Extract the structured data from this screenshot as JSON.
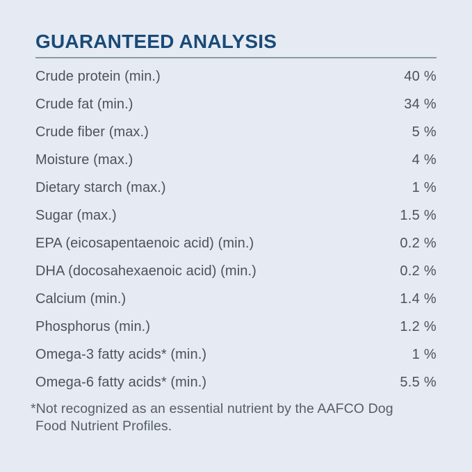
{
  "colors": {
    "background": "#e6ebf3",
    "title": "#1a4a77",
    "underline": "#8c99a6",
    "row_text": "#4c5258",
    "footnote_text": "#565d64"
  },
  "analysis": {
    "title": "GUARANTEED ANALYSIS",
    "rows": [
      {
        "label": "Crude protein (min.)",
        "value": "40 %"
      },
      {
        "label": "Crude fat (min.)",
        "value": "34 %"
      },
      {
        "label": "Crude fiber (max.)",
        "value": "5 %"
      },
      {
        "label": "Moisture (max.)",
        "value": "4 %"
      },
      {
        "label": "Dietary starch (max.)",
        "value": "1 %"
      },
      {
        "label": "Sugar (max.)",
        "value": "1.5 %"
      },
      {
        "label": "EPA (eicosapentaenoic acid) (min.)",
        "value": "0.2 %"
      },
      {
        "label": "DHA (docosahexaenoic acid) (min.)",
        "value": "0.2 %"
      },
      {
        "label": "Calcium (min.)",
        "value": "1.4 %"
      },
      {
        "label": "Phosphorus (min.)",
        "value": "1.2 %"
      },
      {
        "label": "Omega-3 fatty acids* (min.)",
        "value": "1 %"
      },
      {
        "label": "Omega-6 fatty acids* (min.)",
        "value": "5.5 %"
      }
    ],
    "footnote_lines": [
      "*Not recognized as an essential nutrient by the AAFCO Dog",
      "Food Nutrient Profiles."
    ]
  }
}
